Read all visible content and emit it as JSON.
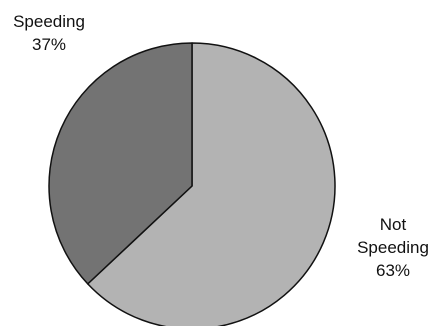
{
  "chart_data": {
    "type": "pie",
    "slices": [
      {
        "label_lines": [
          "Not",
          "Speeding"
        ],
        "percent_label": "63%",
        "value": 63,
        "color": "#b3b3b3"
      },
      {
        "label_lines": [
          "Speeding"
        ],
        "percent_label": "37%",
        "value": 37,
        "color": "#737373"
      }
    ],
    "start_angle_deg": 0,
    "direction": "clockwise",
    "outline_color": "#111111"
  }
}
